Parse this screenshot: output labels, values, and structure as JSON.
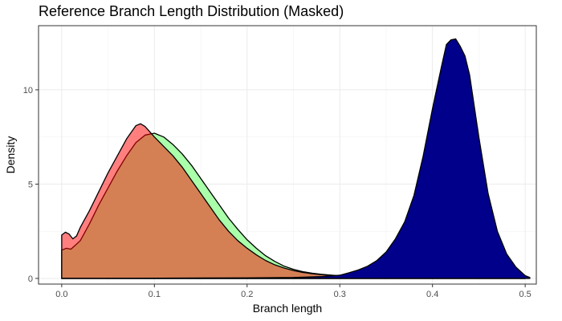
{
  "chart_data": {
    "type": "area",
    "title": "Reference Branch Length Distribution (Masked)",
    "xlabel": "Branch length",
    "ylabel": "Density",
    "xlim": [
      -0.025,
      0.512
    ],
    "ylim": [
      -0.3,
      13.4
    ],
    "x_ticks": [
      0.0,
      0.1,
      0.2,
      0.3,
      0.4,
      0.5
    ],
    "x_tick_labels": [
      "0.0",
      "0.1",
      "0.2",
      "0.3",
      "0.4",
      "0.5"
    ],
    "y_ticks": [
      0,
      5,
      10
    ],
    "y_tick_labels": [
      "0",
      "5",
      "10"
    ],
    "grid": true,
    "legend": "none",
    "series": [
      {
        "color": "#AAFFAA",
        "opacity": 1.0,
        "points": [
          [
            0.0,
            1.5
          ],
          [
            0.005,
            1.6
          ],
          [
            0.01,
            1.55
          ],
          [
            0.02,
            2.0
          ],
          [
            0.03,
            2.9
          ],
          [
            0.04,
            3.9
          ],
          [
            0.05,
            4.8
          ],
          [
            0.06,
            5.7
          ],
          [
            0.07,
            6.5
          ],
          [
            0.08,
            7.2
          ],
          [
            0.09,
            7.6
          ],
          [
            0.1,
            7.7
          ],
          [
            0.11,
            7.5
          ],
          [
            0.12,
            7.1
          ],
          [
            0.13,
            6.6
          ],
          [
            0.14,
            6.0
          ],
          [
            0.15,
            5.3
          ],
          [
            0.16,
            4.6
          ],
          [
            0.17,
            3.9
          ],
          [
            0.18,
            3.2
          ],
          [
            0.19,
            2.6
          ],
          [
            0.2,
            2.05
          ],
          [
            0.21,
            1.6
          ],
          [
            0.22,
            1.2
          ],
          [
            0.23,
            0.9
          ],
          [
            0.24,
            0.65
          ],
          [
            0.25,
            0.48
          ],
          [
            0.26,
            0.36
          ],
          [
            0.27,
            0.28
          ],
          [
            0.28,
            0.22
          ],
          [
            0.29,
            0.18
          ],
          [
            0.3,
            0.14
          ],
          [
            0.32,
            0.09
          ],
          [
            0.34,
            0.06
          ],
          [
            0.36,
            0.04
          ],
          [
            0.38,
            0.03
          ],
          [
            0.4,
            0.02
          ],
          [
            0.45,
            0.01
          ],
          [
            0.5,
            0.0
          ]
        ]
      },
      {
        "color": "#FF0000",
        "opacity": 0.5,
        "points": [
          [
            0.0,
            2.3
          ],
          [
            0.004,
            2.45
          ],
          [
            0.008,
            2.35
          ],
          [
            0.012,
            2.1
          ],
          [
            0.016,
            2.25
          ],
          [
            0.02,
            2.7
          ],
          [
            0.03,
            3.6
          ],
          [
            0.04,
            4.6
          ],
          [
            0.05,
            5.6
          ],
          [
            0.06,
            6.5
          ],
          [
            0.07,
            7.4
          ],
          [
            0.08,
            8.1
          ],
          [
            0.085,
            8.2
          ],
          [
            0.09,
            8.05
          ],
          [
            0.1,
            7.5
          ],
          [
            0.11,
            7.0
          ],
          [
            0.12,
            6.5
          ],
          [
            0.13,
            5.9
          ],
          [
            0.14,
            5.2
          ],
          [
            0.15,
            4.5
          ],
          [
            0.16,
            3.8
          ],
          [
            0.17,
            3.1
          ],
          [
            0.18,
            2.5
          ],
          [
            0.19,
            2.0
          ],
          [
            0.2,
            1.6
          ],
          [
            0.21,
            1.25
          ],
          [
            0.22,
            0.95
          ],
          [
            0.23,
            0.72
          ],
          [
            0.24,
            0.55
          ],
          [
            0.25,
            0.42
          ],
          [
            0.26,
            0.32
          ],
          [
            0.27,
            0.25
          ],
          [
            0.28,
            0.2
          ],
          [
            0.29,
            0.16
          ],
          [
            0.3,
            0.13
          ],
          [
            0.32,
            0.08
          ],
          [
            0.34,
            0.05
          ],
          [
            0.36,
            0.03
          ],
          [
            0.38,
            0.02
          ],
          [
            0.4,
            0.01
          ],
          [
            0.45,
            0.005
          ],
          [
            0.5,
            0.0
          ]
        ]
      },
      {
        "color": "#00008B",
        "opacity": 1.0,
        "points": [
          [
            0.0,
            0.0
          ],
          [
            0.1,
            0.01
          ],
          [
            0.2,
            0.03
          ],
          [
            0.25,
            0.05
          ],
          [
            0.27,
            0.08
          ],
          [
            0.28,
            0.1
          ],
          [
            0.29,
            0.13
          ],
          [
            0.3,
            0.17
          ],
          [
            0.31,
            0.3
          ],
          [
            0.32,
            0.45
          ],
          [
            0.33,
            0.65
          ],
          [
            0.34,
            0.95
          ],
          [
            0.35,
            1.4
          ],
          [
            0.36,
            2.1
          ],
          [
            0.37,
            3.0
          ],
          [
            0.38,
            4.4
          ],
          [
            0.39,
            6.5
          ],
          [
            0.4,
            9.0
          ],
          [
            0.41,
            11.3
          ],
          [
            0.415,
            12.4
          ],
          [
            0.42,
            12.65
          ],
          [
            0.425,
            12.7
          ],
          [
            0.43,
            12.3
          ],
          [
            0.435,
            11.8
          ],
          [
            0.44,
            10.8
          ],
          [
            0.45,
            7.5
          ],
          [
            0.46,
            4.5
          ],
          [
            0.47,
            2.5
          ],
          [
            0.48,
            1.3
          ],
          [
            0.49,
            0.6
          ],
          [
            0.5,
            0.15
          ],
          [
            0.505,
            0.05
          ]
        ]
      }
    ]
  }
}
